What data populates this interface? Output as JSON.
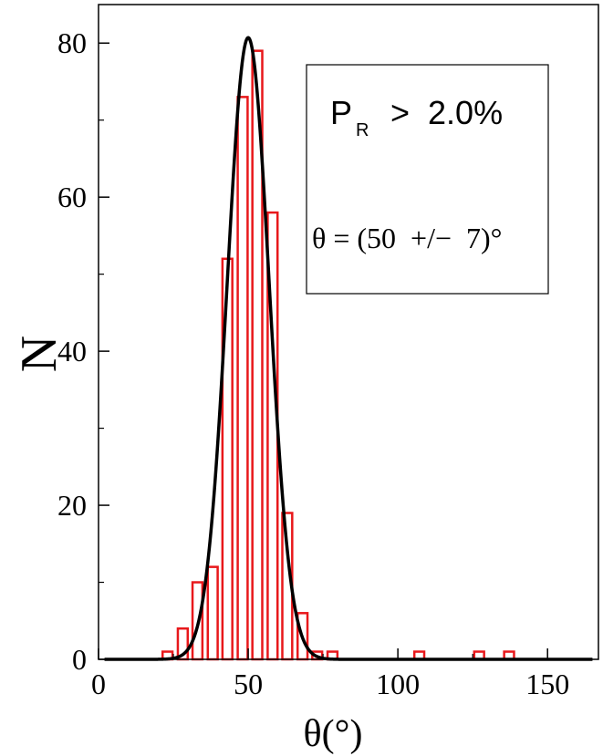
{
  "chart_data": {
    "type": "bar",
    "xlabel": "θ(°)",
    "ylabel": "N",
    "xlim": [
      0,
      167
    ],
    "ylim": [
      0,
      85
    ],
    "xticks": [
      0,
      50,
      100,
      150
    ],
    "xtick_labels": [
      "0",
      "50",
      "100",
      "150"
    ],
    "yticks": [
      0,
      20,
      40,
      60,
      80
    ],
    "ytick_labels": [
      "0",
      "20",
      "40",
      "60",
      "80"
    ],
    "bin_width": 3.3,
    "bins": [
      {
        "x": 21.4,
        "value": 1
      },
      {
        "x": 26.5,
        "value": 4
      },
      {
        "x": 31.4,
        "value": 10
      },
      {
        "x": 36.5,
        "value": 12
      },
      {
        "x": 41.4,
        "value": 52
      },
      {
        "x": 46.5,
        "value": 73
      },
      {
        "x": 51.4,
        "value": 79
      },
      {
        "x": 56.5,
        "value": 58
      },
      {
        "x": 61.4,
        "value": 19
      },
      {
        "x": 66.5,
        "value": 6
      },
      {
        "x": 71.4,
        "value": 1
      },
      {
        "x": 76.5,
        "value": 1
      },
      {
        "x": 105.5,
        "value": 1
      },
      {
        "x": 125.5,
        "value": 1
      },
      {
        "x": 135.5,
        "value": 1
      }
    ],
    "fit": {
      "type": "gaussian",
      "mean": 50,
      "sigma": 7,
      "peak": 80.7
    },
    "grid": false,
    "colors": {
      "bars": "#e8181b",
      "fit": "#000000"
    },
    "annotation": {
      "line1_prefix": "P",
      "line1_sub": "R",
      "line1_rest": "  >  2.0%",
      "line2": "θ = (50  +/−  7)°",
      "placement": "top-right"
    }
  }
}
